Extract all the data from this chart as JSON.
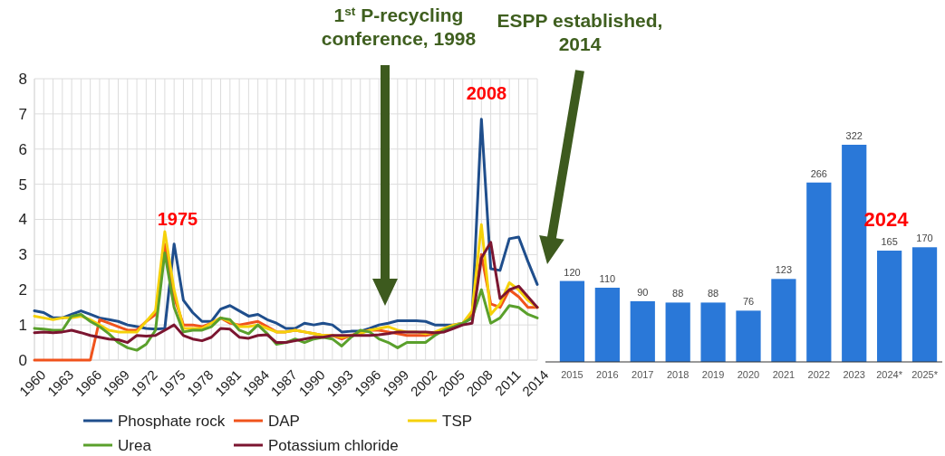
{
  "chart_data": [
    {
      "type": "line",
      "x": [
        1960,
        1961,
        1962,
        1963,
        1964,
        1965,
        1966,
        1967,
        1968,
        1969,
        1970,
        1971,
        1972,
        1973,
        1974,
        1975,
        1976,
        1977,
        1978,
        1979,
        1980,
        1981,
        1982,
        1983,
        1984,
        1985,
        1986,
        1987,
        1988,
        1989,
        1990,
        1991,
        1992,
        1993,
        1994,
        1995,
        1996,
        1997,
        1998,
        1999,
        2000,
        2001,
        2002,
        2003,
        2004,
        2005,
        2006,
        2007,
        2008,
        2009,
        2010,
        2011,
        2012,
        2013,
        2014
      ],
      "series": [
        {
          "name": "Phosphate rock",
          "color": "#1f4e8c",
          "values": [
            1.4,
            1.35,
            1.2,
            1.2,
            1.3,
            1.4,
            1.3,
            1.2,
            1.15,
            1.1,
            1.0,
            0.95,
            0.9,
            0.88,
            0.9,
            3.3,
            1.7,
            1.35,
            1.1,
            1.1,
            1.45,
            1.55,
            1.4,
            1.25,
            1.3,
            1.15,
            1.05,
            0.9,
            0.9,
            1.05,
            1.0,
            1.05,
            1.0,
            0.8,
            0.82,
            0.82,
            0.9,
            1.0,
            1.05,
            1.12,
            1.12,
            1.12,
            1.1,
            1.0,
            1.0,
            1.0,
            1.05,
            1.2,
            6.85,
            2.6,
            2.55,
            3.45,
            3.5,
            2.8,
            2.15
          ]
        },
        {
          "name": "DAP",
          "color": "#f0531c",
          "values": [
            0,
            0,
            0,
            0,
            0,
            0,
            0,
            1.15,
            1.05,
            0.95,
            0.85,
            0.85,
            1.1,
            1.3,
            3.3,
            1.8,
            1.0,
            1.0,
            0.95,
            1.05,
            1.2,
            1.05,
            1.0,
            1.05,
            1.1,
            0.95,
            0.8,
            0.8,
            0.85,
            0.8,
            0.75,
            0.7,
            0.7,
            0.6,
            0.7,
            0.8,
            0.85,
            0.85,
            0.8,
            0.75,
            0.7,
            0.7,
            0.7,
            0.75,
            0.85,
            0.95,
            1.05,
            1.3,
            3.0,
            1.6,
            1.5,
            2.0,
            1.8,
            1.5,
            1.5
          ]
        },
        {
          "name": "TSP",
          "color": "#f5d10a",
          "values": [
            1.25,
            1.2,
            1.15,
            1.2,
            1.2,
            1.25,
            1.15,
            1.0,
            0.85,
            0.8,
            0.8,
            0.8,
            1.1,
            1.4,
            3.65,
            2.0,
            0.9,
            0.9,
            0.9,
            1.05,
            1.2,
            1.1,
            0.95,
            0.95,
            1.0,
            0.9,
            0.8,
            0.8,
            0.85,
            0.8,
            0.75,
            0.7,
            0.7,
            0.65,
            0.7,
            0.75,
            0.85,
            0.9,
            0.95,
            0.85,
            0.8,
            0.8,
            0.75,
            0.8,
            0.9,
            1.0,
            1.05,
            1.4,
            3.85,
            1.3,
            1.6,
            2.2,
            2.0,
            1.7,
            1.5
          ]
        },
        {
          "name": "Urea",
          "color": "#5aa02c",
          "values": [
            0.9,
            0.88,
            0.85,
            0.85,
            1.25,
            1.3,
            1.1,
            0.95,
            0.75,
            0.5,
            0.35,
            0.28,
            0.45,
            0.85,
            3.05,
            1.5,
            0.8,
            0.85,
            0.85,
            0.95,
            1.2,
            1.15,
            0.85,
            0.75,
            1.0,
            0.75,
            0.45,
            0.5,
            0.6,
            0.5,
            0.6,
            0.65,
            0.6,
            0.4,
            0.65,
            0.85,
            0.8,
            0.6,
            0.5,
            0.35,
            0.5,
            0.5,
            0.5,
            0.7,
            0.85,
            0.95,
            1.05,
            1.2,
            2.0,
            1.05,
            1.2,
            1.55,
            1.5,
            1.3,
            1.2
          ]
        },
        {
          "name": "Potassium chloride",
          "color": "#7b1530",
          "values": [
            0.78,
            0.8,
            0.78,
            0.8,
            0.85,
            0.78,
            0.7,
            0.65,
            0.6,
            0.58,
            0.5,
            0.7,
            0.68,
            0.7,
            0.85,
            1.0,
            0.7,
            0.6,
            0.55,
            0.65,
            0.9,
            0.88,
            0.65,
            0.62,
            0.7,
            0.72,
            0.5,
            0.5,
            0.55,
            0.6,
            0.65,
            0.65,
            0.7,
            0.7,
            0.7,
            0.7,
            0.7,
            0.72,
            0.75,
            0.8,
            0.8,
            0.8,
            0.8,
            0.78,
            0.8,
            0.9,
            1.0,
            1.05,
            2.9,
            3.35,
            1.75,
            2.0,
            2.1,
            1.8,
            1.5
          ]
        }
      ],
      "xlim": [
        1960,
        2014
      ],
      "xticks": [
        1960,
        {
          "value": 1961,
          "label": null
        },
        {
          "value": 1962,
          "label": null
        },
        1963,
        {
          "value": 1964,
          "label": null
        },
        {
          "value": 1965,
          "label": null
        },
        1966,
        {
          "value": 1967,
          "label": null
        },
        {
          "value": 1968,
          "label": null
        },
        1969,
        {
          "value": 1970,
          "label": null
        },
        {
          "value": 1971,
          "label": null
        },
        1972,
        {
          "value": 1973,
          "label": null
        },
        {
          "value": 1974,
          "label": null
        },
        1975,
        {
          "value": 1976,
          "label": null
        },
        {
          "value": 1977,
          "label": null
        },
        1978,
        {
          "value": 1979,
          "label": null
        },
        {
          "value": 1980,
          "label": null
        },
        1981,
        {
          "value": 1982,
          "label": null
        },
        {
          "value": 1983,
          "label": null
        },
        1984,
        {
          "value": 1985,
          "label": null
        },
        {
          "value": 1986,
          "label": null
        },
        1987,
        {
          "value": 1988,
          "label": null
        },
        {
          "value": 1989,
          "label": null
        },
        1990,
        {
          "value": 1991,
          "label": null
        },
        {
          "value": 1992,
          "label": null
        },
        1993,
        {
          "value": 1994,
          "label": null
        },
        {
          "value": 1995,
          "label": null
        },
        1996,
        {
          "value": 1997,
          "label": null
        },
        {
          "value": 1998,
          "label": null
        },
        1999,
        {
          "value": 2000,
          "label": null
        },
        {
          "value": 2001,
          "label": null
        },
        2002,
        {
          "value": 2003,
          "label": null
        },
        {
          "value": 2004,
          "label": null
        },
        2005,
        {
          "value": 2006,
          "label": null
        },
        {
          "value": 2007,
          "label": null
        },
        2008,
        {
          "value": 2009,
          "label": null
        },
        {
          "value": 2010,
          "label": null
        },
        2011,
        {
          "value": 2012,
          "label": null
        },
        {
          "value": 2013,
          "label": null
        },
        2014
      ],
      "ylim": [
        0,
        8
      ],
      "yticks": [
        0,
        1,
        2,
        3,
        4,
        5,
        6,
        7,
        8
      ],
      "grid": true,
      "legend": "bottom",
      "annotations": [
        "1975",
        "2008",
        "1$^{st}$ P-recycling conference, 1998",
        "ESPP established, 2014"
      ]
    },
    {
      "type": "bar",
      "categories": [
        "2015",
        "2016",
        "2017",
        "2018",
        "2019",
        "2020",
        "2021",
        "2022",
        "2023",
        "2024*",
        "2025*"
      ],
      "values": [
        120,
        110,
        90,
        88,
        88,
        76,
        123,
        266,
        322,
        165,
        170
      ],
      "color": "#2a78d8",
      "data_labels": true,
      "annotations": [
        "2024"
      ]
    }
  ]
}
